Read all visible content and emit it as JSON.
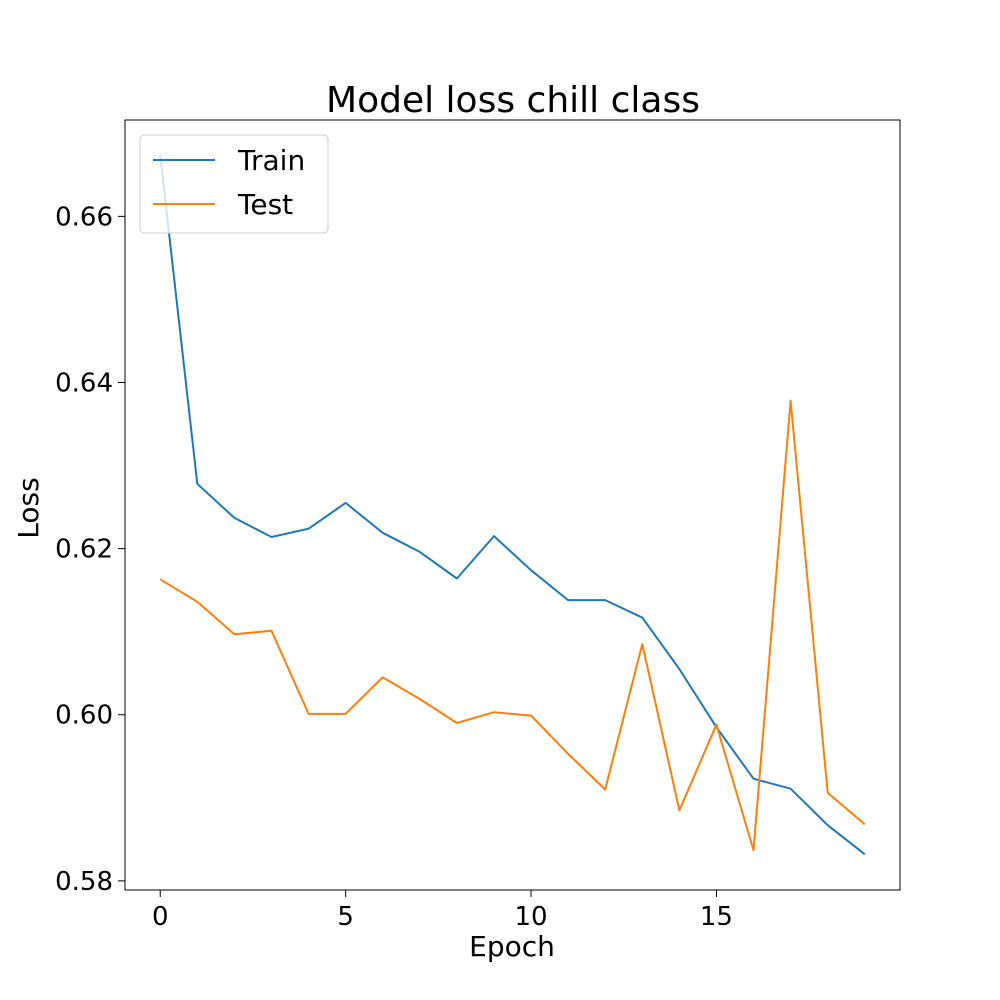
{
  "chart_data": {
    "type": "line",
    "title": "Model loss chill class",
    "xlabel": "Epoch",
    "ylabel": "Loss",
    "xlim": [
      -0.95,
      19.95
    ],
    "ylim": [
      0.5789,
      0.6716
    ],
    "xticks": [
      0,
      5,
      10,
      15
    ],
    "yticks": [
      0.58,
      0.6,
      0.62,
      0.64,
      0.66
    ],
    "ytick_labels": [
      "0.58",
      "0.60",
      "0.62",
      "0.64",
      "0.66"
    ],
    "grid": false,
    "legend_position": "top-left",
    "x": [
      0,
      1,
      2,
      3,
      4,
      5,
      6,
      7,
      8,
      9,
      10,
      11,
      12,
      13,
      14,
      15,
      16,
      17,
      18,
      19
    ],
    "series": [
      {
        "name": "Train",
        "color": "#1f77b4",
        "values": [
          0.6674,
          0.6278,
          0.6237,
          0.6214,
          0.6224,
          0.6255,
          0.6219,
          0.6196,
          0.6164,
          0.6215,
          0.6174,
          0.6138,
          0.6138,
          0.6117,
          0.6055,
          0.5985,
          0.5923,
          0.5911,
          0.5867,
          0.5832
        ]
      },
      {
        "name": "Test",
        "color": "#ff7f0e",
        "values": [
          0.6163,
          0.6136,
          0.6097,
          0.6101,
          0.6001,
          0.6001,
          0.6045,
          0.6019,
          0.599,
          0.6003,
          0.5999,
          0.5953,
          0.591,
          0.6085,
          0.5885,
          0.5988,
          0.5837,
          0.6378,
          0.5906,
          0.5868
        ]
      }
    ]
  }
}
